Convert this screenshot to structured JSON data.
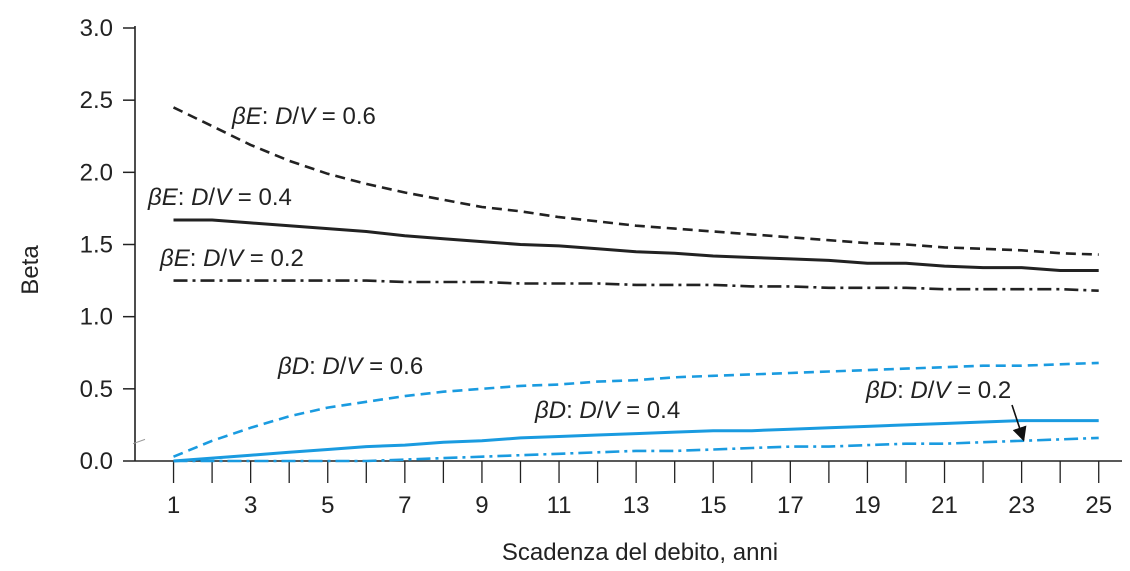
{
  "chart_data": {
    "type": "line",
    "title": "",
    "xlabel": "Scadenza del debito, anni",
    "ylabel": "Beta",
    "xlim": [
      0,
      25.5
    ],
    "ylim": [
      0,
      3.0
    ],
    "x_ticks": [
      1,
      3,
      5,
      7,
      9,
      11,
      13,
      15,
      17,
      19,
      21,
      23,
      25
    ],
    "y_ticks": [
      0.0,
      0.5,
      1.0,
      1.5,
      2.0,
      2.5,
      3.0
    ],
    "y_tick_labels": [
      "0.0",
      "0.5",
      "1.0",
      "1.5",
      "2.0",
      "2.5",
      "3.0"
    ],
    "grid": false,
    "legend": "none",
    "x": [
      1,
      2,
      3,
      4,
      5,
      6,
      7,
      8,
      9,
      10,
      11,
      12,
      13,
      14,
      15,
      16,
      17,
      18,
      19,
      20,
      21,
      22,
      23,
      24,
      25
    ],
    "series": [
      {
        "name": "βE: D/V = 0.6",
        "color": "#222222",
        "dash": "dashed",
        "values": [
          2.45,
          2.32,
          2.19,
          2.08,
          1.99,
          1.92,
          1.86,
          1.81,
          1.76,
          1.73,
          1.69,
          1.66,
          1.63,
          1.61,
          1.59,
          1.57,
          1.55,
          1.53,
          1.51,
          1.5,
          1.48,
          1.47,
          1.46,
          1.44,
          1.43
        ]
      },
      {
        "name": "βE: D/V = 0.4",
        "color": "#222222",
        "dash": "solid",
        "values": [
          1.67,
          1.67,
          1.65,
          1.63,
          1.61,
          1.59,
          1.56,
          1.54,
          1.52,
          1.5,
          1.49,
          1.47,
          1.45,
          1.44,
          1.42,
          1.41,
          1.4,
          1.39,
          1.37,
          1.37,
          1.35,
          1.34,
          1.34,
          1.32,
          1.32
        ]
      },
      {
        "name": "βE: D/V = 0.2",
        "color": "#222222",
        "dash": "dashdot",
        "values": [
          1.25,
          1.25,
          1.25,
          1.25,
          1.25,
          1.25,
          1.24,
          1.24,
          1.24,
          1.23,
          1.23,
          1.23,
          1.22,
          1.22,
          1.22,
          1.21,
          1.21,
          1.2,
          1.2,
          1.2,
          1.19,
          1.19,
          1.19,
          1.19,
          1.18
        ]
      },
      {
        "name": "βD: D/V = 0.6",
        "color": "#1a9be0",
        "dash": "dashed",
        "values": [
          0.03,
          0.14,
          0.23,
          0.31,
          0.37,
          0.41,
          0.45,
          0.48,
          0.5,
          0.52,
          0.53,
          0.55,
          0.56,
          0.58,
          0.59,
          0.6,
          0.61,
          0.62,
          0.63,
          0.64,
          0.65,
          0.66,
          0.66,
          0.67,
          0.68
        ]
      },
      {
        "name": "βD: D/V = 0.4",
        "color": "#1a9be0",
        "dash": "solid",
        "values": [
          0.0,
          0.02,
          0.04,
          0.06,
          0.08,
          0.1,
          0.11,
          0.13,
          0.14,
          0.16,
          0.17,
          0.18,
          0.19,
          0.2,
          0.21,
          0.21,
          0.22,
          0.23,
          0.24,
          0.25,
          0.26,
          0.27,
          0.28,
          0.28,
          0.28
        ]
      },
      {
        "name": "βD: D/V = 0.2",
        "color": "#1a9be0",
        "dash": "dashdot",
        "values": [
          0.0,
          0.0,
          0.0,
          0.0,
          0.0,
          0.0,
          0.01,
          0.02,
          0.03,
          0.04,
          0.05,
          0.06,
          0.07,
          0.07,
          0.08,
          0.09,
          0.1,
          0.1,
          0.11,
          0.12,
          0.12,
          0.13,
          0.14,
          0.15,
          0.16
        ]
      }
    ],
    "annotations": [
      {
        "greek": "β",
        "sym": "E",
        "sep": ": ",
        "D": "D",
        "slash": "/",
        "V": "V",
        "eq": " = ",
        "val": "0.6"
      },
      {
        "greek": "β",
        "sym": "E",
        "sep": ": ",
        "D": "D",
        "slash": "/",
        "V": "V",
        "eq": " = ",
        "val": "0.4"
      },
      {
        "greek": "β",
        "sym": "E",
        "sep": ": ",
        "D": "D",
        "slash": "/",
        "V": "V",
        "eq": " = ",
        "val": "0.2"
      },
      {
        "greek": "β",
        "sym": "D",
        "sep": ": ",
        "D": "D",
        "slash": "/",
        "V": "V",
        "eq": " = ",
        "val": "0.6"
      },
      {
        "greek": "β",
        "sym": "D",
        "sep": ": ",
        "D": "D",
        "slash": "/",
        "V": "V",
        "eq": " = ",
        "val": "0.4"
      },
      {
        "greek": "β",
        "sym": "D",
        "sep": ": ",
        "D": "D",
        "slash": "/",
        "V": "V",
        "eq": " = ",
        "val": "0.2"
      }
    ]
  }
}
